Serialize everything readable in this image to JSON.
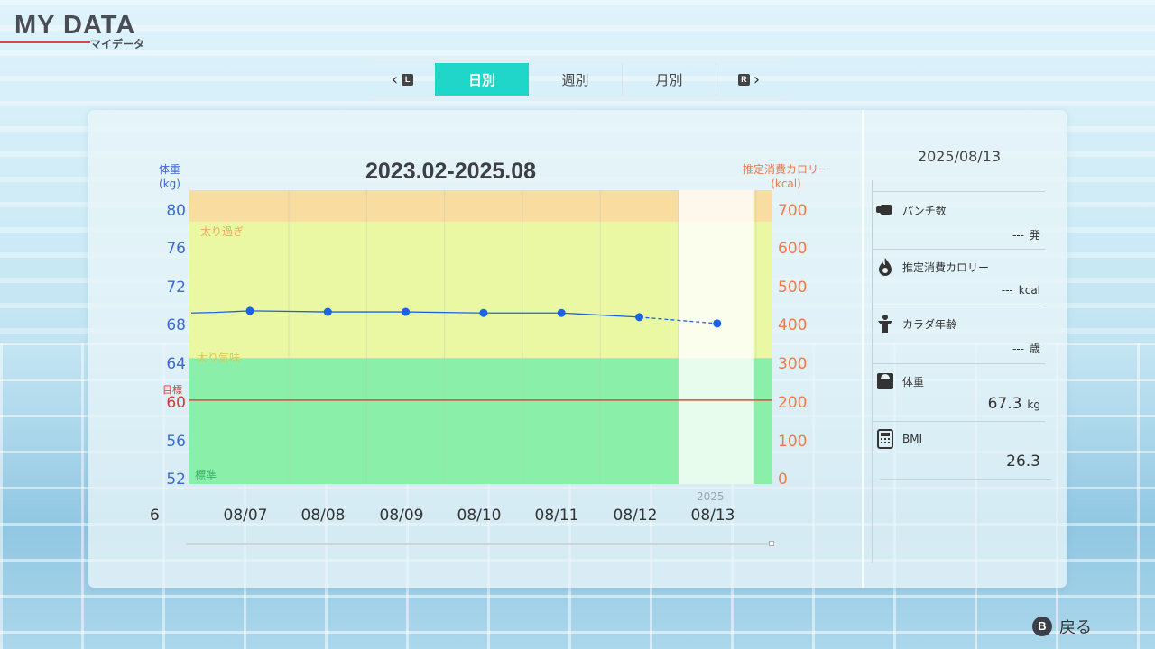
{
  "header": {
    "title": "MY DATA",
    "subtitle": "マイデータ"
  },
  "tabs": {
    "left_button": "L",
    "right_button": "R",
    "items": [
      {
        "label": "日別",
        "active": true
      },
      {
        "label": "週別",
        "active": false
      },
      {
        "label": "月別",
        "active": false
      }
    ]
  },
  "chart": {
    "title": "2023.02-2025.08",
    "left_axis_label": "体重",
    "left_axis_unit": "(kg)",
    "right_axis_label": "推定消費カロリー",
    "right_axis_unit": "(kcal)",
    "left_ticks": [
      "80",
      "76",
      "72",
      "68",
      "64",
      "60",
      "56",
      "52"
    ],
    "right_ticks": [
      "700",
      "600",
      "500",
      "400",
      "300",
      "200",
      "100",
      "0"
    ],
    "goal_label": "目標",
    "zone_labels": {
      "over": "太り過ぎ",
      "slightly_over": "太り気味",
      "normal": "標準"
    },
    "x_ticks": [
      "6",
      "08/07",
      "08/08",
      "08/09",
      "08/10",
      "08/11",
      "08/12",
      "08/13"
    ],
    "year_label": "2025"
  },
  "chart_data": {
    "type": "line",
    "title": "2023.02-2025.08",
    "x": [
      "08/07",
      "08/08",
      "08/09",
      "08/10",
      "08/11",
      "08/12",
      "08/13"
    ],
    "series": [
      {
        "name": "体重",
        "values": [
          68.5,
          68.4,
          68.4,
          68.3,
          68.3,
          67.9,
          67.3
        ]
      }
    ],
    "goal_weight": 60,
    "ylim_left": [
      52,
      80
    ],
    "ylim_right": [
      0,
      700
    ],
    "zones": [
      {
        "label": "太り過ぎ",
        "from": 77,
        "to": 80,
        "color": "#f8dca0"
      },
      {
        "label": "太り気味",
        "from": 64,
        "to": 77,
        "color": "#eaf7a3"
      },
      {
        "label": "標準",
        "from": 52,
        "to": 64,
        "color": "#8af0a9"
      }
    ],
    "line_color": "#1b63e6",
    "goal_color": "#e04a3a"
  },
  "info": {
    "date": "2025/08/13",
    "rows": [
      {
        "label": "パンチ数",
        "value": "---",
        "unit": "発",
        "icon": "punch-icon"
      },
      {
        "label": "推定消費カロリー",
        "value": "---",
        "unit": "kcal",
        "icon": "flame-icon"
      },
      {
        "label": "カラダ年齢",
        "value": "---",
        "unit": "歳",
        "icon": "body-age-icon"
      },
      {
        "label": "体重",
        "value": "67.3",
        "unit": "kg",
        "icon": "scale-icon"
      },
      {
        "label": "BMI",
        "value": "26.3",
        "unit": "",
        "icon": "calculator-icon"
      }
    ]
  },
  "footer": {
    "back_button": "B",
    "back_label": "戻る"
  }
}
